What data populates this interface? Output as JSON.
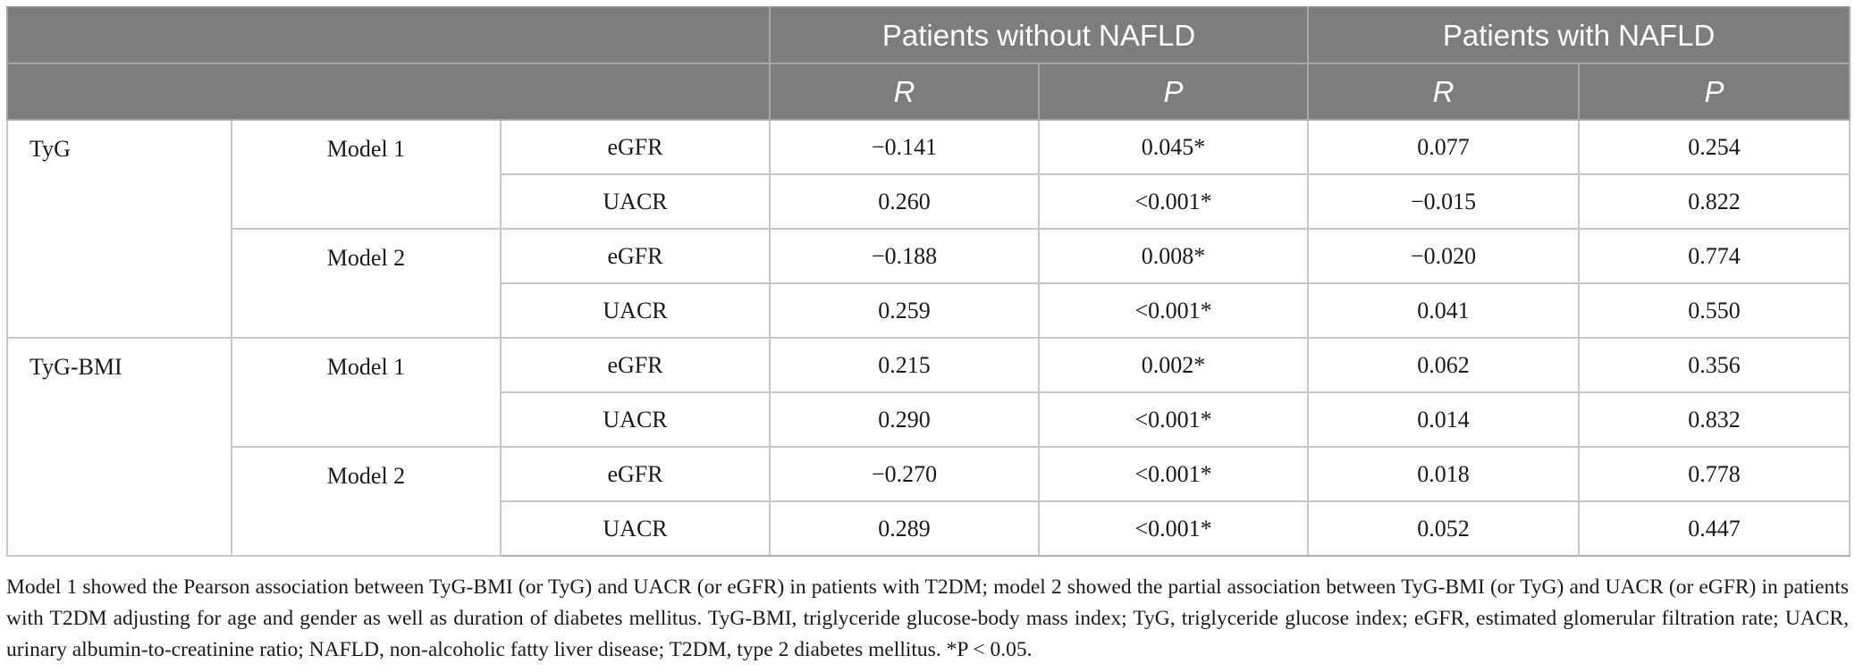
{
  "header": {
    "group_without": "Patients without NAFLD",
    "group_with": "Patients with NAFLD",
    "r_label": "R",
    "p_label": "P"
  },
  "rows": [
    {
      "indicator": "TyG",
      "model": "Model 1",
      "variable": "eGFR",
      "r_without": "−0.141",
      "p_without": "0.045*",
      "r_with": "0.077",
      "p_with": "0.254"
    },
    {
      "indicator": "",
      "model": "",
      "variable": "UACR",
      "r_without": "0.260",
      "p_without": "<0.001*",
      "r_with": "−0.015",
      "p_with": "0.822"
    },
    {
      "indicator": "",
      "model": "Model 2",
      "variable": "eGFR",
      "r_without": "−0.188",
      "p_without": "0.008*",
      "r_with": "−0.020",
      "p_with": "0.774"
    },
    {
      "indicator": "",
      "model": "",
      "variable": "UACR",
      "r_without": "0.259",
      "p_without": "<0.001*",
      "r_with": "0.041",
      "p_with": "0.550"
    },
    {
      "indicator": "TyG-BMI",
      "model": "Model 1",
      "variable": "eGFR",
      "r_without": "0.215",
      "p_without": "0.002*",
      "r_with": "0.062",
      "p_with": "0.356"
    },
    {
      "indicator": "",
      "model": "",
      "variable": "UACR",
      "r_without": "0.290",
      "p_without": "<0.001*",
      "r_with": "0.014",
      "p_with": "0.832"
    },
    {
      "indicator": "",
      "model": "Model 2",
      "variable": "eGFR",
      "r_without": "−0.270",
      "p_without": "<0.001*",
      "r_with": "0.018",
      "p_with": "0.778"
    },
    {
      "indicator": "",
      "model": "",
      "variable": "UACR",
      "r_without": "0.289",
      "p_without": "<0.001*",
      "r_with": "0.052",
      "p_with": "0.447"
    }
  ],
  "footnote": "Model 1 showed the Pearson association between TyG-BMI (or TyG) and UACR (or eGFR) in patients with T2DM; model 2 showed the partial association between TyG-BMI (or TyG) and UACR (or eGFR) in patients with T2DM adjusting for age and gender as well as duration of diabetes mellitus. TyG-BMI, triglyceride glucose-body mass index; TyG, triglyceride glucose index; eGFR, estimated glomerular filtration rate; UACR, urinary albumin-to-creatinine ratio; NAFLD, non-alcoholic fatty liver disease; T2DM, type 2 diabetes mellitus. *P < 0.05.",
  "colors": {
    "header_bg": "#7d7d7d",
    "header_text": "#ffffff",
    "grid": "#c8c8c8"
  }
}
